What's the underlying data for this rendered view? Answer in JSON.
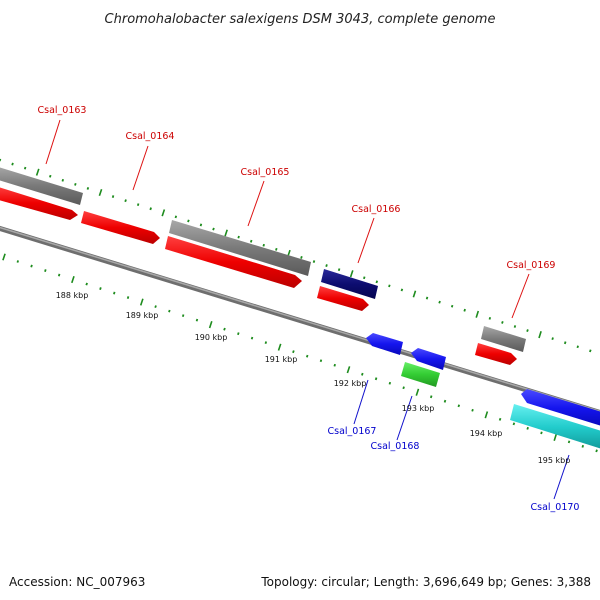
{
  "title": "Chromohalobacter salexigens DSM 3043, complete genome",
  "footer": {
    "accession": "Accession: NC_007963",
    "summary": "Topology: circular; Length: 3,696,649 bp; Genes: 3,388"
  },
  "colors": {
    "backbone": "#8c8c8c",
    "ticks": "#1e8c1e",
    "label_forward": "#cc0000",
    "label_reverse": "#0000cc",
    "callout_forward": "#dd1111",
    "callout_reverse": "#1111cc"
  },
  "scale_labels": [
    "188 kbp",
    "189 kbp",
    "190 kbp",
    "191 kbp",
    "192 kbp",
    "193 kbp",
    "194 kbp",
    "195 kbp"
  ],
  "gene_labels": [
    {
      "id": "Csal_0163",
      "strand": "forward"
    },
    {
      "id": "Csal_0164",
      "strand": "forward"
    },
    {
      "id": "Csal_0165",
      "strand": "forward"
    },
    {
      "id": "Csal_0166",
      "strand": "forward"
    },
    {
      "id": "Csal_0169",
      "strand": "forward"
    },
    {
      "id": "Csal_0167",
      "strand": "reverse"
    },
    {
      "id": "Csal_0168",
      "strand": "reverse"
    },
    {
      "id": "Csal_0170",
      "strand": "reverse"
    }
  ]
}
